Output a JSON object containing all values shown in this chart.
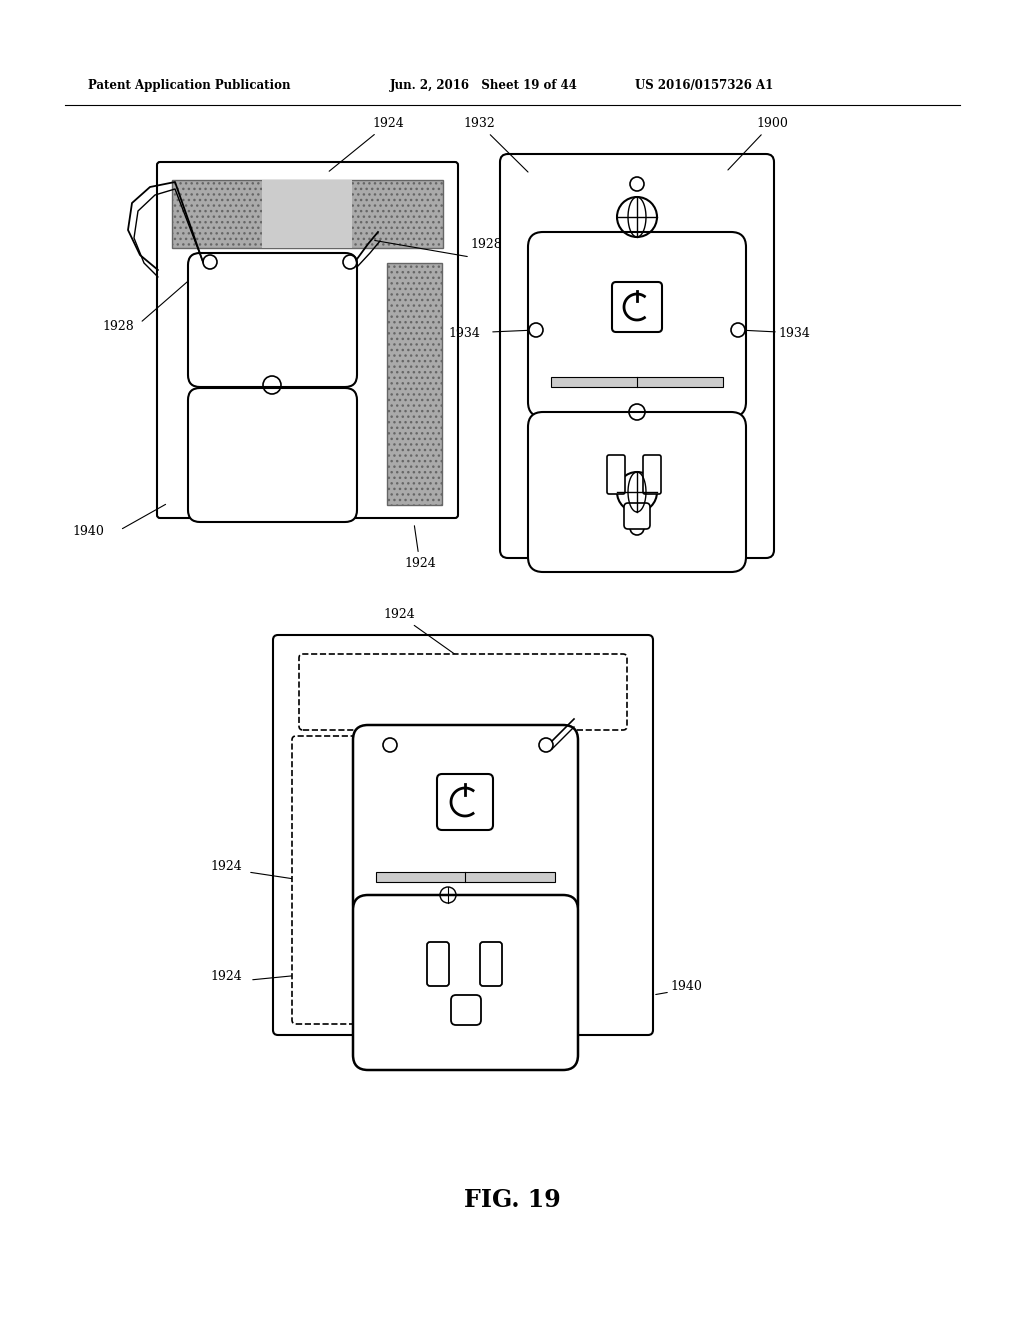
{
  "bg_color": "#ffffff",
  "line_color": "#000000",
  "gray_fill": "#aaaaaa",
  "gray_dark": "#888888",
  "header_text_left": "Patent Application Publication",
  "header_text_mid": "Jun. 2, 2016   Sheet 19 of 44",
  "header_text_right": "US 2016/0157326 A1",
  "fig_label": "FIG. 19"
}
